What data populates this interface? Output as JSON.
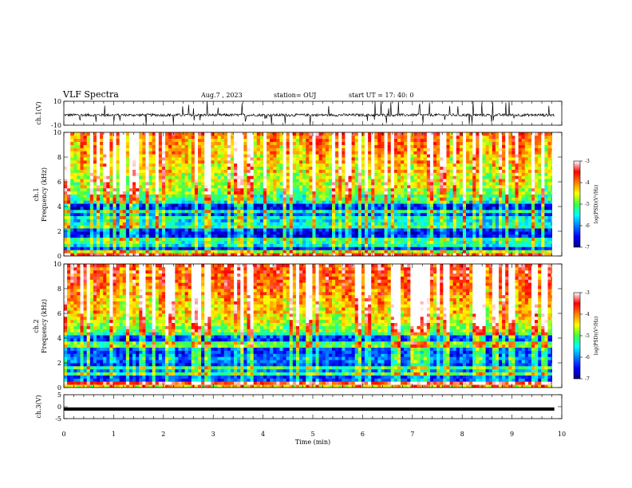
{
  "header": {
    "title": "VLF Spectra",
    "date": "Aug.7  , 2023",
    "station": "station= OUJ",
    "start": "start  UT  =   17: 40: 0"
  },
  "chart_data": [
    {
      "type": "line",
      "panel": "ch1-waveform",
      "ylabel": "ch.1(V)",
      "ylim": [
        -10,
        10
      ],
      "yticks": [
        "10",
        "-10"
      ],
      "xlim": [
        0,
        10
      ],
      "description_values": {
        "baseline": -1.5,
        "spike_range": [
          -10,
          10
        ]
      }
    },
    {
      "type": "heatmap",
      "panel": "ch1-spectrogram",
      "ylabel": "ch.1\nFrequency  (kHz)",
      "ylabel_line1": "ch.1",
      "ylabel_line2": "Frequency  (kHz)",
      "ylim": [
        0,
        10
      ],
      "yticks": [
        "0",
        "2",
        "4",
        "6",
        "8",
        "10"
      ],
      "xlim": [
        0,
        9.85
      ],
      "colorbar": {
        "label": "log(PSD)(V²/Hz)",
        "range": [
          -7,
          -3
        ],
        "ticks": [
          "-3",
          "-4",
          "-5",
          "-6",
          "-7"
        ]
      }
    },
    {
      "type": "heatmap",
      "panel": "ch2-spectrogram",
      "ylabel_line1": "ch.2",
      "ylabel_line2": "Frequency  (kHz)",
      "ylim": [
        0,
        10
      ],
      "yticks": [
        "0",
        "2",
        "4",
        "6",
        "8",
        "10"
      ],
      "xlim": [
        0,
        9.85
      ],
      "colorbar": {
        "label": "log(PSD)(V²/Hz)",
        "range": [
          -7,
          -3
        ],
        "ticks": [
          "-3",
          "-4",
          "-5",
          "-6",
          "-7"
        ]
      }
    },
    {
      "type": "line",
      "panel": "ch3-waveform",
      "ylabel": "ch.3(V)",
      "ylim": [
        -5,
        5
      ],
      "yticks": [
        "5",
        "0",
        "-5"
      ],
      "xlim": [
        0,
        10
      ],
      "values_constant": -1
    }
  ],
  "xaxis": {
    "label": "Time  (min)",
    "ticks": [
      "0",
      "1",
      "2",
      "3",
      "4",
      "5",
      "6",
      "7",
      "8",
      "9",
      "10"
    ]
  },
  "colorbar_label": "log(PSD)(V",
  "colorbar_label_tail": "/Hz)",
  "colorbar_label_sup": "2"
}
